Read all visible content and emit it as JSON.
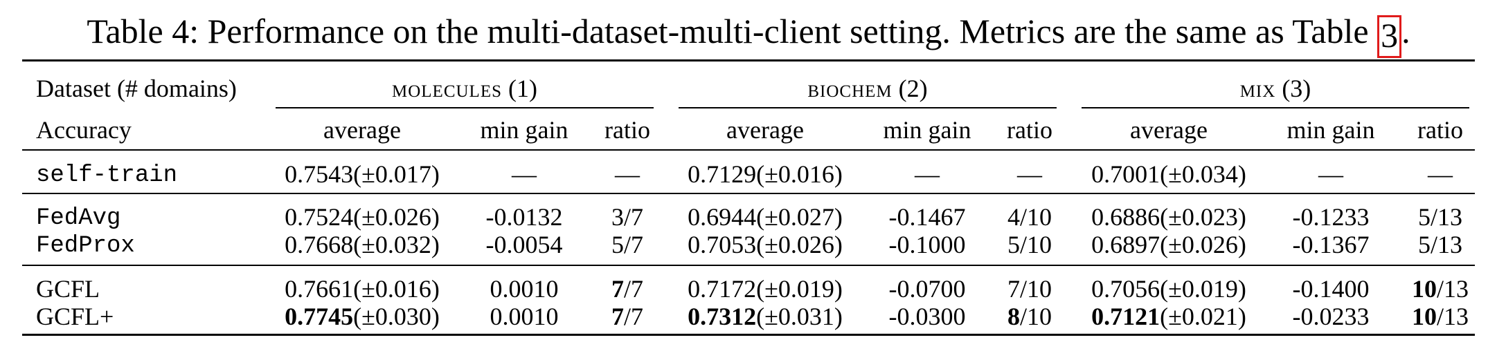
{
  "caption": {
    "text": "Table 4: Performance on the multi-dataset-multi-client setting. Metrics are the same as Table ",
    "ref": "3",
    "end": "."
  },
  "header": {
    "dataset_label": "Dataset (# domains)",
    "accuracy_label": "Accuracy",
    "groups": [
      {
        "name": "molecules",
        "count": "(1)"
      },
      {
        "name": "biochem",
        "count": "(2)"
      },
      {
        "name": "mix",
        "count": "(3)"
      }
    ],
    "subcols": [
      "average",
      "min gain",
      "ratio"
    ]
  },
  "rows": [
    {
      "method": "self-train",
      "mono": true,
      "cells": [
        {
          "avg": "0.7543",
          "std": "(±0.017)",
          "min_gain": "—",
          "ratio_num": "",
          "ratio_den": "—"
        },
        {
          "avg": "0.7129",
          "std": "(±0.016)",
          "min_gain": "—",
          "ratio_num": "",
          "ratio_den": "—"
        },
        {
          "avg": "0.7001",
          "std": "(±0.034)",
          "min_gain": "—",
          "ratio_num": "",
          "ratio_den": "—"
        }
      ]
    },
    {
      "method": "FedAvg",
      "mono": true,
      "cells": [
        {
          "avg": "0.7524",
          "std": "(±0.026)",
          "min_gain": "-0.0132",
          "ratio_num": "3",
          "ratio_den": "/7"
        },
        {
          "avg": "0.6944",
          "std": "(±0.027)",
          "min_gain": "-0.1467",
          "ratio_num": "4",
          "ratio_den": "/10"
        },
        {
          "avg": "0.6886",
          "std": "(±0.023)",
          "min_gain": "-0.1233",
          "ratio_num": "5",
          "ratio_den": "/13"
        }
      ]
    },
    {
      "method": "FedProx",
      "mono": true,
      "cells": [
        {
          "avg": "0.7668",
          "std": "(±0.032)",
          "min_gain": "-0.0054",
          "ratio_num": "5",
          "ratio_den": "/7"
        },
        {
          "avg": "0.7053",
          "std": "(±0.026)",
          "min_gain": "-0.1000",
          "ratio_num": "5",
          "ratio_den": "/10"
        },
        {
          "avg": "0.6897",
          "std": "(±0.026)",
          "min_gain": "-0.1367",
          "ratio_num": "5",
          "ratio_den": "/13"
        }
      ]
    },
    {
      "method": "GCFL",
      "mono": false,
      "cells": [
        {
          "avg": "0.7661",
          "std": "(±0.016)",
          "min_gain": "0.0010",
          "ratio_num": "7",
          "ratio_den": "/7",
          "bold_ratio": true
        },
        {
          "avg": "0.7172",
          "std": "(±0.019)",
          "min_gain": "-0.0700",
          "ratio_num": "7",
          "ratio_den": "/10"
        },
        {
          "avg": "0.7056",
          "std": "(±0.019)",
          "min_gain": "-0.1400",
          "ratio_num": "10",
          "ratio_den": "/13",
          "bold_ratio": true
        }
      ]
    },
    {
      "method": "GCFL+",
      "mono": false,
      "cells": [
        {
          "avg": "0.7745",
          "std": "(±0.030)",
          "min_gain": "0.0010",
          "ratio_num": "7",
          "ratio_den": "/7",
          "bold_avg": true,
          "bold_ratio": true
        },
        {
          "avg": "0.7312",
          "std": "(±0.031)",
          "min_gain": "-0.0300",
          "ratio_num": "8",
          "ratio_den": "/10",
          "bold_avg": true,
          "bold_ratio": true
        },
        {
          "avg": "0.7121",
          "std": "(±0.021)",
          "min_gain": "-0.0233",
          "ratio_num": "10",
          "ratio_den": "/13",
          "bold_avg": true,
          "bold_ratio": true
        }
      ]
    }
  ]
}
